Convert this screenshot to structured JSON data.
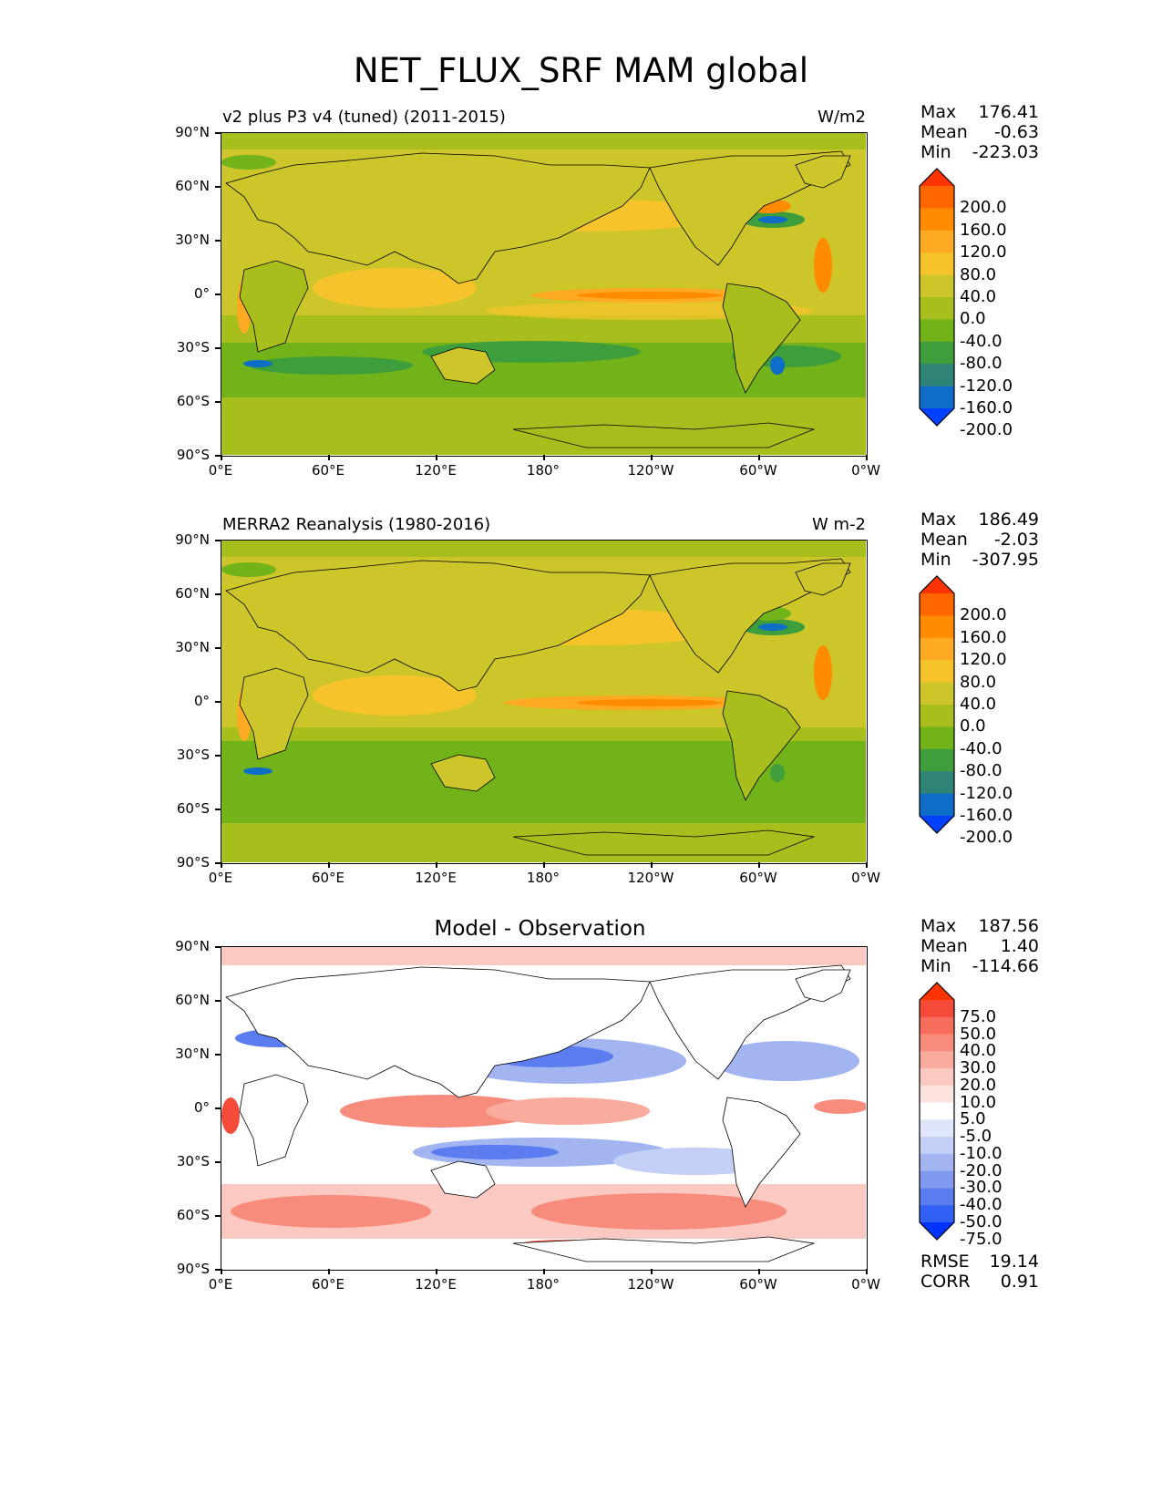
{
  "figure_title": "NET_FLUX_SRF MAM global",
  "lat_ticks": [
    "90°N",
    "60°N",
    "30°N",
    "0°",
    "30°S",
    "60°S",
    "90°S"
  ],
  "lon_ticks": [
    "0°E",
    "60°E",
    "120°E",
    "180°",
    "120°W",
    "60°W",
    "0°W"
  ],
  "panels": {
    "test": {
      "label": "v2 plus P3 v4 (tuned) (2011-2015)",
      "units": "W/m2",
      "stats": {
        "max_label": "Max",
        "max": "176.41",
        "mean_label": "Mean",
        "mean": "-0.63",
        "min_label": "Min",
        "min": "-223.03"
      }
    },
    "ref": {
      "label": "MERRA2 Reanalysis (1980-2016)",
      "units": "W m-2",
      "stats": {
        "max_label": "Max",
        "max": "186.49",
        "mean_label": "Mean",
        "mean": "-2.03",
        "min_label": "Min",
        "min": "-307.95"
      }
    },
    "diff": {
      "title": "Model - Observation",
      "stats": {
        "max_label": "Max",
        "max": "187.56",
        "mean_label": "Mean",
        "mean": "1.40",
        "min_label": "Min",
        "min": "-114.66"
      },
      "rmse_label": "RMSE",
      "rmse": "19.14",
      "corr_label": "CORR",
      "corr": "0.91"
    }
  },
  "colorbars": {
    "main": {
      "labels": [
        "200.0",
        "160.0",
        "120.0",
        "80.0",
        "40.0",
        "0.0",
        "-40.0",
        "-80.0",
        "-120.0",
        "-160.0",
        "-200.0"
      ],
      "colors": [
        "#ff3300",
        "#ff6600",
        "#ff8c00",
        "#ffaa22",
        "#f6c42a",
        "#cdc62a",
        "#a8be1c",
        "#72b31a",
        "#3e9e3c",
        "#2f8477",
        "#0e6dc6",
        "#0040ff"
      ]
    },
    "diff": {
      "labels": [
        "75.0",
        "50.0",
        "40.0",
        "30.0",
        "20.0",
        "10.0",
        "5.0",
        "-5.0",
        "-10.0",
        "-20.0",
        "-30.0",
        "-40.0",
        "-50.0",
        "-75.0"
      ],
      "colors": [
        "#ff3300",
        "#f34a3a",
        "#f66d5c",
        "#f88c7c",
        "#f9ab9e",
        "#fbc9c1",
        "#fde3df",
        "#ffffff",
        "#e0e6fa",
        "#c3cff5",
        "#a3b5f1",
        "#8199ee",
        "#5c7df0",
        "#3160f5",
        "#0033ff"
      ]
    }
  },
  "chart_data": [
    {
      "type": "heatmap",
      "title": "v2 plus P3 v4 (tuned) (2011-2015)",
      "units": "W/m2",
      "x_ticks": [
        "0°E",
        "60°E",
        "120°E",
        "180°",
        "120°W",
        "60°W",
        "0°W"
      ],
      "y_ticks": [
        "90°N",
        "60°N",
        "30°N",
        "0°",
        "30°S",
        "60°S",
        "90°S"
      ],
      "xlim": [
        0,
        360
      ],
      "ylim": [
        -90,
        90
      ],
      "levels": [
        -200,
        -160,
        -120,
        -80,
        -40,
        0,
        40,
        80,
        120,
        160,
        200
      ],
      "max": 176.41,
      "mean": -0.63,
      "min": -223.03
    },
    {
      "type": "heatmap",
      "title": "MERRA2 Reanalysis (1980-2016)",
      "units": "W m-2",
      "x_ticks": [
        "0°E",
        "60°E",
        "120°E",
        "180°",
        "120°W",
        "60°W",
        "0°W"
      ],
      "y_ticks": [
        "90°N",
        "60°N",
        "30°N",
        "0°",
        "30°S",
        "60°S",
        "90°S"
      ],
      "xlim": [
        0,
        360
      ],
      "ylim": [
        -90,
        90
      ],
      "levels": [
        -200,
        -160,
        -120,
        -80,
        -40,
        0,
        40,
        80,
        120,
        160,
        200
      ],
      "max": 186.49,
      "mean": -2.03,
      "min": -307.95
    },
    {
      "type": "heatmap",
      "title": "Model - Observation",
      "x_ticks": [
        "0°E",
        "60°E",
        "120°E",
        "180°",
        "120°W",
        "60°W",
        "0°W"
      ],
      "y_ticks": [
        "90°N",
        "60°N",
        "30°N",
        "0°",
        "30°S",
        "60°S",
        "90°S"
      ],
      "xlim": [
        0,
        360
      ],
      "ylim": [
        -90,
        90
      ],
      "levels": [
        -75,
        -50,
        -40,
        -30,
        -20,
        -10,
        -5,
        5,
        10,
        20,
        30,
        40,
        50,
        75
      ],
      "max": 187.56,
      "mean": 1.4,
      "min": -114.66,
      "rmse": 19.14,
      "corr": 0.91
    }
  ]
}
